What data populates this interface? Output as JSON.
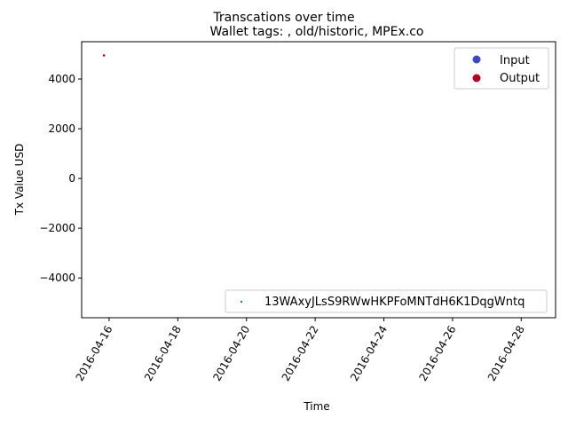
{
  "chart_data": {
    "type": "scatter",
    "suptitle": "Transcations over time",
    "title": "Wallet tags: , old/historic, MPEx.co",
    "xlabel": "Time",
    "ylabel": "Tx Value USD",
    "x_ticks": [
      "2016-04-16",
      "2016-04-18",
      "2016-04-20",
      "2016-04-22",
      "2016-04-24",
      "2016-04-26",
      "2016-04-28"
    ],
    "x_range": [
      "2016-04-15.2",
      "2016-04-29"
    ],
    "y_ticks": [
      4000,
      2000,
      0,
      -2000,
      -4000
    ],
    "y_tick_labels": [
      "4000",
      "2000",
      "0",
      "−2000",
      "−4000"
    ],
    "ylim": [
      -5600,
      5500
    ],
    "grid": false,
    "legend_top": {
      "placement": "top-right",
      "entries": [
        {
          "label": "Input",
          "color": "#3b4cc0"
        },
        {
          "label": "Output",
          "color": "#b40426"
        }
      ]
    },
    "legend_bottom": {
      "placement": "bottom-right",
      "entries": [
        {
          "label": "13WAxyJLsS9RWwHKPFoMNTdH6K1DqgWntq",
          "color": "#1f77b4"
        }
      ]
    },
    "series": [
      {
        "name": "13WAxyJLsS9RWwHKPFoMNTdH6K1DqgWntq",
        "points": [
          {
            "x": "2016-04-15.85",
            "y": 4950,
            "kind": "Output",
            "color": "#b40426"
          }
        ]
      }
    ]
  }
}
